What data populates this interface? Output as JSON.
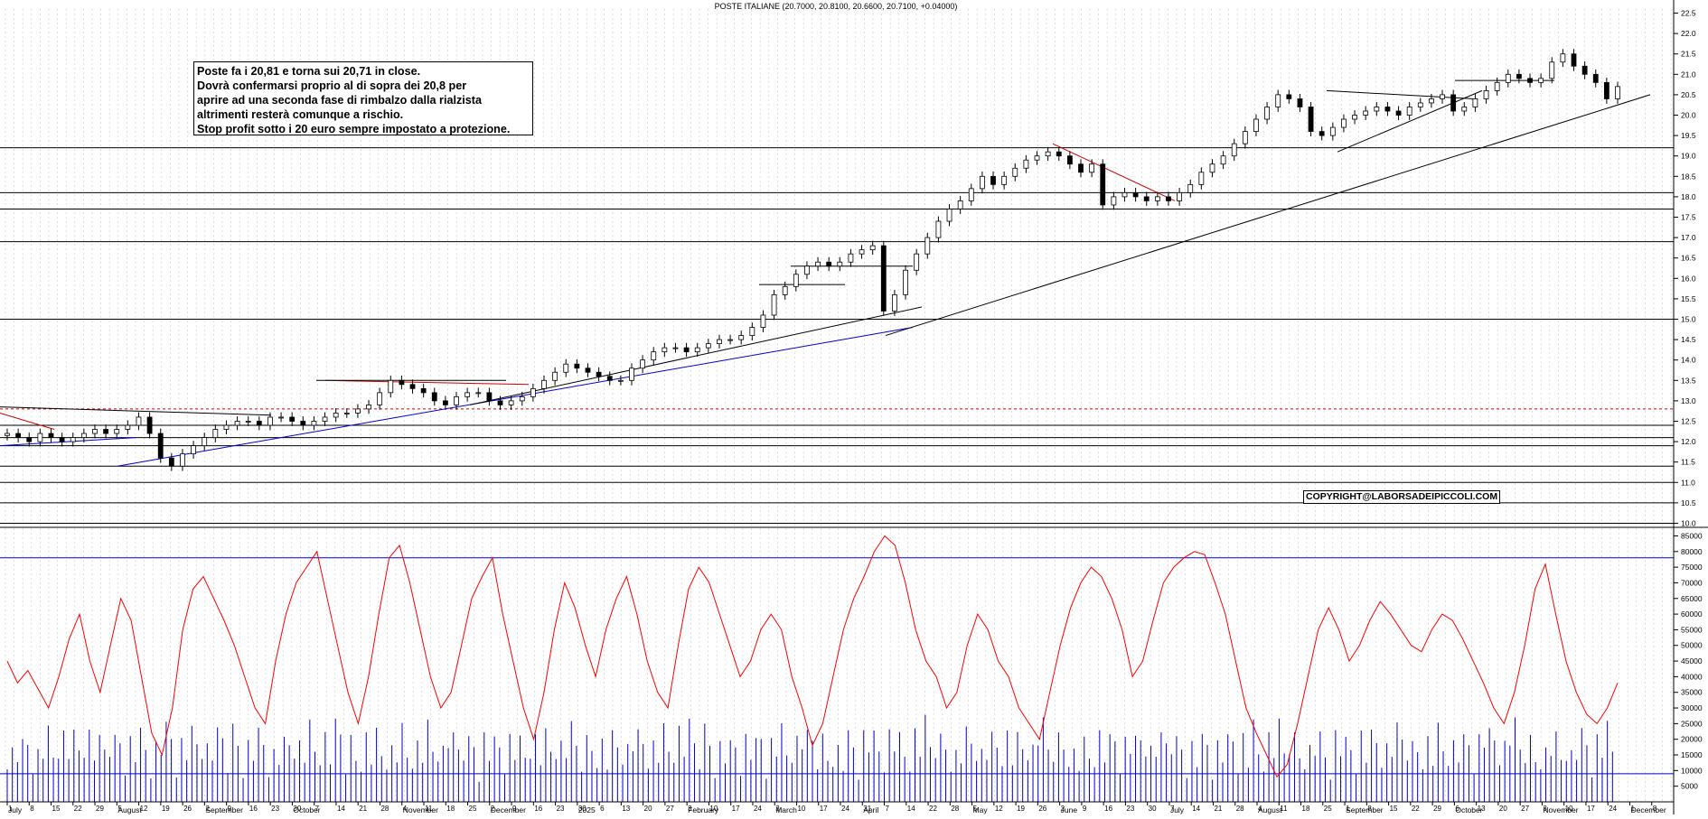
{
  "chart_data": [
    {
      "type": "candlestick",
      "title": "POSTE ITALIANE (20.7000, 20.8100, 20.6600, 20.7100, +0.04000)",
      "ylim": [
        9.9,
        22.6
      ],
      "y_ticks": [
        "10.0",
        "10.5",
        "11.0",
        "11.5",
        "12.0",
        "12.5",
        "13.0",
        "13.5",
        "14.0",
        "14.5",
        "15.0",
        "15.5",
        "16.0",
        "16.5",
        "17.0",
        "17.5",
        "18.0",
        "18.5",
        "19.0",
        "19.5",
        "20.0",
        "20.5",
        "21.0",
        "21.5",
        "22.0",
        "22.5"
      ],
      "annotation": [
        "Poste fa i 20,81 e torna sui 20,71 in close.",
        "Dovrà confermarsi proprio al di sopra dei 20,8 per",
        "aprire ad una seconda fase di rimbalzo dalla rialzista",
        "altrimenti resterà comunque a rischio.",
        "Stop profit sotto i 20 euro sempre impostato a protezione."
      ],
      "copyright": "COPYRIGHT@LABORSADEIPICCOLI.COM",
      "horizontal_levels": [
        10.0,
        10.5,
        11.0,
        11.4,
        11.9,
        12.1,
        12.4,
        15.0,
        16.9,
        17.7,
        18.1,
        19.2
      ],
      "dashed_level": 12.8,
      "series_close": [
        12.2,
        12.1,
        12.0,
        12.2,
        12.1,
        12.0,
        12.1,
        12.2,
        12.3,
        12.2,
        12.3,
        12.4,
        12.6,
        12.2,
        11.6,
        11.4,
        11.7,
        11.9,
        12.1,
        12.3,
        12.4,
        12.5,
        12.5,
        12.4,
        12.6,
        12.6,
        12.5,
        12.4,
        12.5,
        12.6,
        12.7,
        12.7,
        12.8,
        12.9,
        13.2,
        13.5,
        13.4,
        13.3,
        13.2,
        13.0,
        12.9,
        13.1,
        13.2,
        13.2,
        13.0,
        12.9,
        13.0,
        13.1,
        13.3,
        13.5,
        13.7,
        13.9,
        13.8,
        13.7,
        13.6,
        13.5,
        13.5,
        13.8,
        14.0,
        14.2,
        14.3,
        14.3,
        14.2,
        14.3,
        14.4,
        14.5,
        14.5,
        14.6,
        14.8,
        15.1,
        15.6,
        15.8,
        16.1,
        16.3,
        16.4,
        16.3,
        16.4,
        16.6,
        16.7,
        16.8,
        15.2,
        15.6,
        16.2,
        16.6,
        17.0,
        17.4,
        17.7,
        17.9,
        18.2,
        18.5,
        18.3,
        18.5,
        18.7,
        18.9,
        19.0,
        19.1,
        19.0,
        18.8,
        18.6,
        18.8,
        17.8,
        18.0,
        18.1,
        18.0,
        17.9,
        18.0,
        17.9,
        18.1,
        18.3,
        18.6,
        18.8,
        19.0,
        19.3,
        19.6,
        19.9,
        20.2,
        20.5,
        20.4,
        20.2,
        19.6,
        19.5,
        19.7,
        19.9,
        20.0,
        20.1,
        20.2,
        20.1,
        20.0,
        20.2,
        20.3,
        20.4,
        20.5,
        20.1,
        20.2,
        20.4,
        20.6,
        20.8,
        21.0,
        20.9,
        20.8,
        20.9,
        21.3,
        21.5,
        21.2,
        21.0,
        20.8,
        20.4,
        20.7
      ],
      "x_ticks": [
        {
          "label": "1",
          "row": 1
        },
        {
          "label": "8",
          "row": 1
        },
        {
          "label": "15",
          "row": 1
        },
        {
          "label": "22",
          "row": 1
        },
        {
          "label": "29",
          "row": 1
        },
        {
          "label": "5",
          "row": 1
        },
        {
          "label": "12",
          "row": 1
        },
        {
          "label": "19",
          "row": 1
        },
        {
          "label": "26",
          "row": 1
        },
        {
          "label": "2",
          "row": 1
        },
        {
          "label": "9",
          "row": 1
        },
        {
          "label": "16",
          "row": 1
        },
        {
          "label": "23",
          "row": 1
        },
        {
          "label": "30",
          "row": 1
        },
        {
          "label": "7",
          "row": 1
        },
        {
          "label": "14",
          "row": 1
        },
        {
          "label": "21",
          "row": 1
        },
        {
          "label": "28",
          "row": 1
        },
        {
          "label": "4",
          "row": 1
        },
        {
          "label": "11",
          "row": 1
        },
        {
          "label": "18",
          "row": 1
        },
        {
          "label": "25",
          "row": 1
        },
        {
          "label": "2",
          "row": 1
        },
        {
          "label": "9",
          "row": 1
        },
        {
          "label": "16",
          "row": 1
        },
        {
          "label": "23",
          "row": 1
        },
        {
          "label": "30",
          "row": 1
        },
        {
          "label": "6",
          "row": 1
        },
        {
          "label": "13",
          "row": 1
        },
        {
          "label": "20",
          "row": 1
        },
        {
          "label": "27",
          "row": 1
        },
        {
          "label": "3",
          "row": 1
        },
        {
          "label": "10",
          "row": 1
        },
        {
          "label": "17",
          "row": 1
        },
        {
          "label": "24",
          "row": 1
        },
        {
          "label": "3",
          "row": 1
        },
        {
          "label": "10",
          "row": 1
        },
        {
          "label": "17",
          "row": 1
        },
        {
          "label": "24",
          "row": 1
        },
        {
          "label": "31",
          "row": 1
        },
        {
          "label": "7",
          "row": 1
        },
        {
          "label": "14",
          "row": 1
        },
        {
          "label": "22",
          "row": 1
        },
        {
          "label": "28",
          "row": 1
        },
        {
          "label": "5",
          "row": 1
        },
        {
          "label": "12",
          "row": 1
        },
        {
          "label": "19",
          "row": 1
        },
        {
          "label": "26",
          "row": 1
        },
        {
          "label": "2",
          "row": 1
        },
        {
          "label": "9",
          "row": 1
        },
        {
          "label": "16",
          "row": 1
        },
        {
          "label": "23",
          "row": 1
        },
        {
          "label": "30",
          "row": 1
        },
        {
          "label": "7",
          "row": 1
        },
        {
          "label": "14",
          "row": 1
        },
        {
          "label": "21",
          "row": 1
        },
        {
          "label": "28",
          "row": 1
        },
        {
          "label": "4",
          "row": 1
        },
        {
          "label": "11",
          "row": 1
        },
        {
          "label": "18",
          "row": 1
        },
        {
          "label": "25",
          "row": 1
        },
        {
          "label": "1",
          "row": 1
        },
        {
          "label": "8",
          "row": 1
        },
        {
          "label": "15",
          "row": 1
        },
        {
          "label": "22",
          "row": 1
        },
        {
          "label": "29",
          "row": 1
        },
        {
          "label": "6",
          "row": 1
        },
        {
          "label": "13",
          "row": 1
        },
        {
          "label": "20",
          "row": 1
        },
        {
          "label": "27",
          "row": 1
        },
        {
          "label": "3",
          "row": 1
        },
        {
          "label": "10",
          "row": 1
        },
        {
          "label": "17",
          "row": 1
        },
        {
          "label": "24",
          "row": 1
        },
        {
          "label": "1",
          "row": 1
        },
        {
          "label": "8",
          "row": 1
        }
      ],
      "months": [
        {
          "label": "July",
          "pos": 0
        },
        {
          "label": "August",
          "pos": 5
        },
        {
          "label": "September",
          "pos": 9
        },
        {
          "label": "October",
          "pos": 13
        },
        {
          "label": "November",
          "pos": 18
        },
        {
          "label": "December",
          "pos": 22
        },
        {
          "label": "2025",
          "pos": 26
        },
        {
          "label": "February",
          "pos": 31
        },
        {
          "label": "March",
          "pos": 35
        },
        {
          "label": "April",
          "pos": 39
        },
        {
          "label": "May",
          "pos": 44
        },
        {
          "label": "June",
          "pos": 48
        },
        {
          "label": "July",
          "pos": 53
        },
        {
          "label": "August",
          "pos": 57
        },
        {
          "label": "September",
          "pos": 61
        },
        {
          "label": "October",
          "pos": 66
        },
        {
          "label": "November",
          "pos": 70
        },
        {
          "label": "December",
          "pos": 74
        }
      ]
    },
    {
      "type": "bar+line",
      "title": "",
      "ylim": [
        0,
        86000
      ],
      "y_ticks": [
        "5000",
        "10000",
        "15000",
        "20000",
        "25000",
        "30000",
        "35000",
        "40000",
        "45000",
        "50000",
        "55000",
        "60000",
        "65000",
        "70000",
        "75000",
        "80000",
        "85000"
      ],
      "horizontal_levels": [
        78000,
        9000
      ],
      "oscillator_series": [
        45,
        38,
        42,
        36,
        30,
        40,
        52,
        60,
        45,
        35,
        50,
        65,
        58,
        40,
        22,
        15,
        30,
        55,
        68,
        72,
        65,
        58,
        50,
        40,
        30,
        25,
        45,
        60,
        70,
        75,
        80,
        65,
        50,
        35,
        25,
        40,
        60,
        78,
        82,
        70,
        55,
        40,
        30,
        35,
        50,
        65,
        72,
        78,
        60,
        45,
        30,
        20,
        35,
        55,
        70,
        62,
        50,
        40,
        55,
        65,
        72,
        60,
        45,
        35,
        30,
        50,
        68,
        75,
        70,
        60,
        50,
        40,
        45,
        55,
        60,
        55,
        40,
        30,
        18,
        25,
        40,
        55,
        65,
        72,
        80,
        85,
        82,
        70,
        55,
        45,
        40,
        30,
        35,
        50,
        60,
        55,
        45,
        40,
        30,
        25,
        20,
        35,
        50,
        62,
        70,
        75,
        72,
        65,
        55,
        40,
        45,
        58,
        70,
        75,
        78,
        80,
        79,
        70,
        60,
        45,
        30,
        22,
        15,
        8,
        12,
        25,
        40,
        55,
        62,
        55,
        45,
        50,
        58,
        64,
        60,
        55,
        50,
        48,
        55,
        60,
        58,
        52,
        45,
        38,
        30,
        25,
        35,
        50,
        68,
        76,
        60,
        45,
        35,
        28,
        25,
        30,
        38
      ]
    }
  ]
}
